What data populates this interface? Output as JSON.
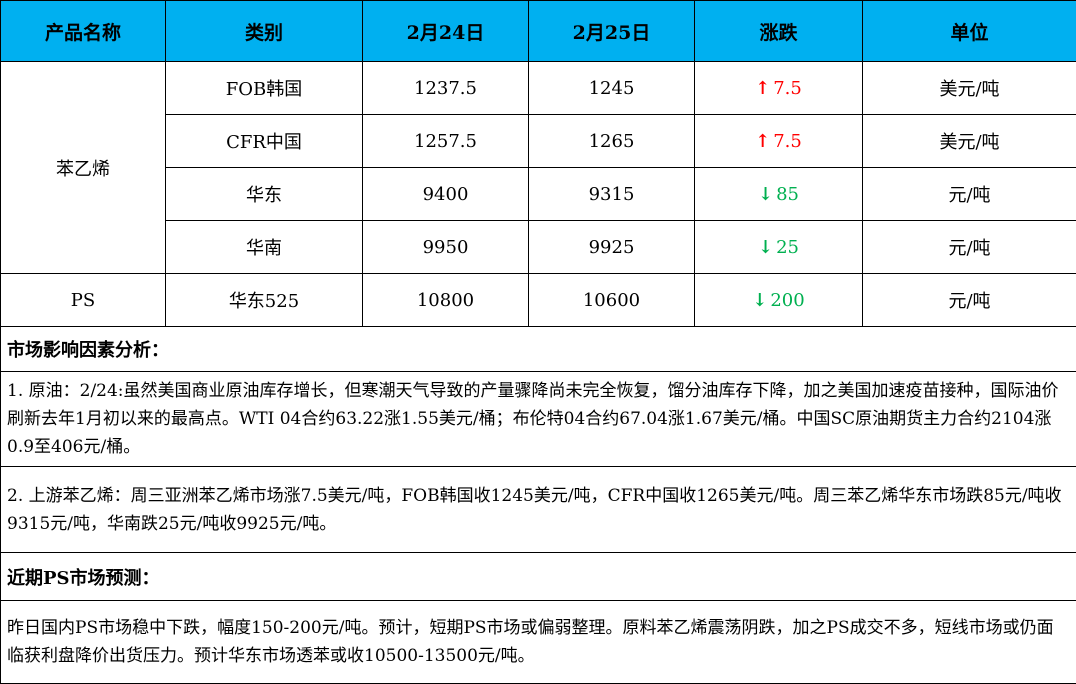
{
  "header": {
    "cols": [
      "产品名称",
      "类别",
      "2月24日",
      "2月25日",
      "涨跌",
      "单位"
    ]
  },
  "rows": [
    {
      "product": "苯乙烯",
      "category": "FOB韩国",
      "d24": "1237.5",
      "d25": "1245",
      "change": "7.5",
      "direction": "up",
      "unit": "美元/吨"
    },
    {
      "category": "CFR中国",
      "d24": "1257.5",
      "d25": "1265",
      "change": "7.5",
      "direction": "up",
      "unit": "美元/吨"
    },
    {
      "category": "华东",
      "d24": "9400",
      "d25": "9315",
      "change": "85",
      "direction": "down",
      "unit": "元/吨"
    },
    {
      "category": "华南",
      "d24": "9950",
      "d25": "9925",
      "change": "25",
      "direction": "down",
      "unit": "元/吨"
    },
    {
      "product": "PS",
      "category": "华东525",
      "d24": "10800",
      "d25": "10600",
      "change": "200",
      "direction": "down",
      "unit": "元/吨"
    }
  ],
  "arrows": {
    "up": "↑",
    "down": "↓"
  },
  "colors": {
    "header_bg": "#00B0F0",
    "up": "#FF0000",
    "down": "#00B050"
  },
  "analysis": {
    "title": "市场影响因素分析：",
    "p1": "1. 原油：2/24:虽然美国商业原油库存增长，但寒潮天气导致的产量骤降尚未完全恢复，馏分油库存下降，加之美国加速疫苗接种，国际油价刷新去年1月初以来的最高点。WTI  04合约63.22涨1.55美元/桶；布伦特04合约67.04涨1.67美元/桶。中国SC原油期货主力合约2104涨0.9至406元/桶。",
    "p2": "2. 上游苯乙烯：周三亚洲苯乙烯市场涨7.5美元/吨，FOB韩国收1245美元/吨，CFR中国收1265美元/吨。周三苯乙烯华东市场跌85元/吨收9315元/吨，华南跌25元/吨收9925元/吨。"
  },
  "forecast": {
    "title": "近期PS市场预测：",
    "p1": "昨日国内PS市场稳中下跌，幅度150-200元/吨。预计，短期PS市场或偏弱整理。原料苯乙烯震荡阴跌，加之PS成交不多，短线市场或仍面临获利盘降价出货压力。预计华东市场透苯或收10500-13500元/吨。"
  }
}
